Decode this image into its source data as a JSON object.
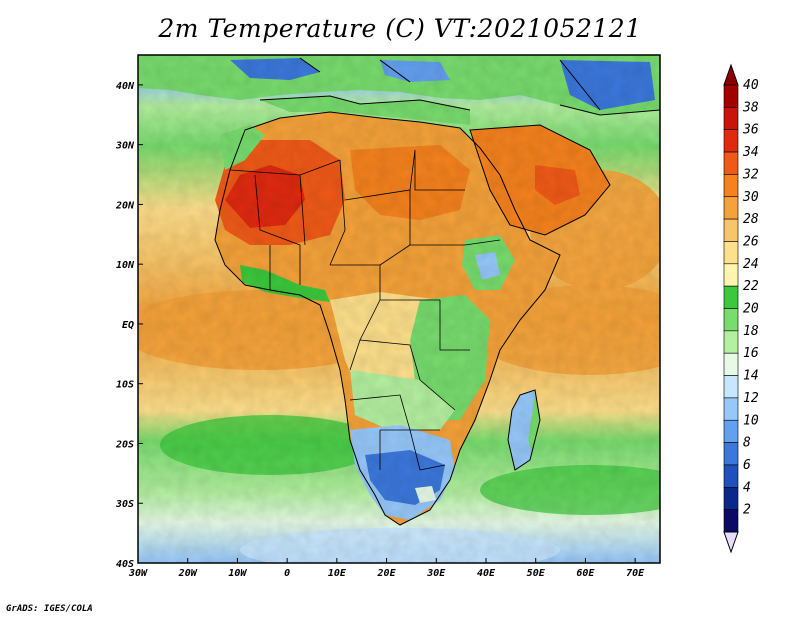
{
  "title": "2m Temperature (C) VT:2021052121",
  "credit": "GrADS: IGES/COLA",
  "map": {
    "lon_range": [
      -30,
      75
    ],
    "lat_range": [
      -40,
      45
    ],
    "lat_ticks": [
      {
        "value": 40,
        "label": "40N"
      },
      {
        "value": 30,
        "label": "30N"
      },
      {
        "value": 20,
        "label": "20N"
      },
      {
        "value": 10,
        "label": "10N"
      },
      {
        "value": 0,
        "label": "EQ"
      },
      {
        "value": -10,
        "label": "10S"
      },
      {
        "value": -20,
        "label": "20S"
      },
      {
        "value": -30,
        "label": "30S"
      },
      {
        "value": -40,
        "label": "40S"
      }
    ],
    "lon_ticks": [
      {
        "value": -30,
        "label": "30W"
      },
      {
        "value": -20,
        "label": "20W"
      },
      {
        "value": -10,
        "label": "10W"
      },
      {
        "value": 0,
        "label": "0"
      },
      {
        "value": 10,
        "label": "10E"
      },
      {
        "value": 20,
        "label": "20E"
      },
      {
        "value": 30,
        "label": "30E"
      },
      {
        "value": 40,
        "label": "40E"
      },
      {
        "value": 50,
        "label": "50E"
      },
      {
        "value": 60,
        "label": "60E"
      },
      {
        "value": 70,
        "label": "70E"
      }
    ]
  },
  "colorbar": {
    "levels": [
      "40",
      "38",
      "36",
      "34",
      "32",
      "30",
      "28",
      "26",
      "24",
      "22",
      "20",
      "18",
      "16",
      "14",
      "12",
      "10",
      "8",
      "6",
      "4",
      "2"
    ],
    "colors": [
      "#a00000",
      "#c8140a",
      "#e02a10",
      "#f05a18",
      "#f5821e",
      "#f5a23a",
      "#f8c66a",
      "#fde08c",
      "#fff5b0",
      "#3cc83c",
      "#78dc6e",
      "#b4f0a0",
      "#e6fae6",
      "#c8e6ff",
      "#96c8fa",
      "#64a0f0",
      "#3c78dc",
      "#1e50be",
      "#0a288c",
      "#0a0a64"
    ],
    "top_color": "#8c0000",
    "bottom_color": "#e6dcff"
  }
}
